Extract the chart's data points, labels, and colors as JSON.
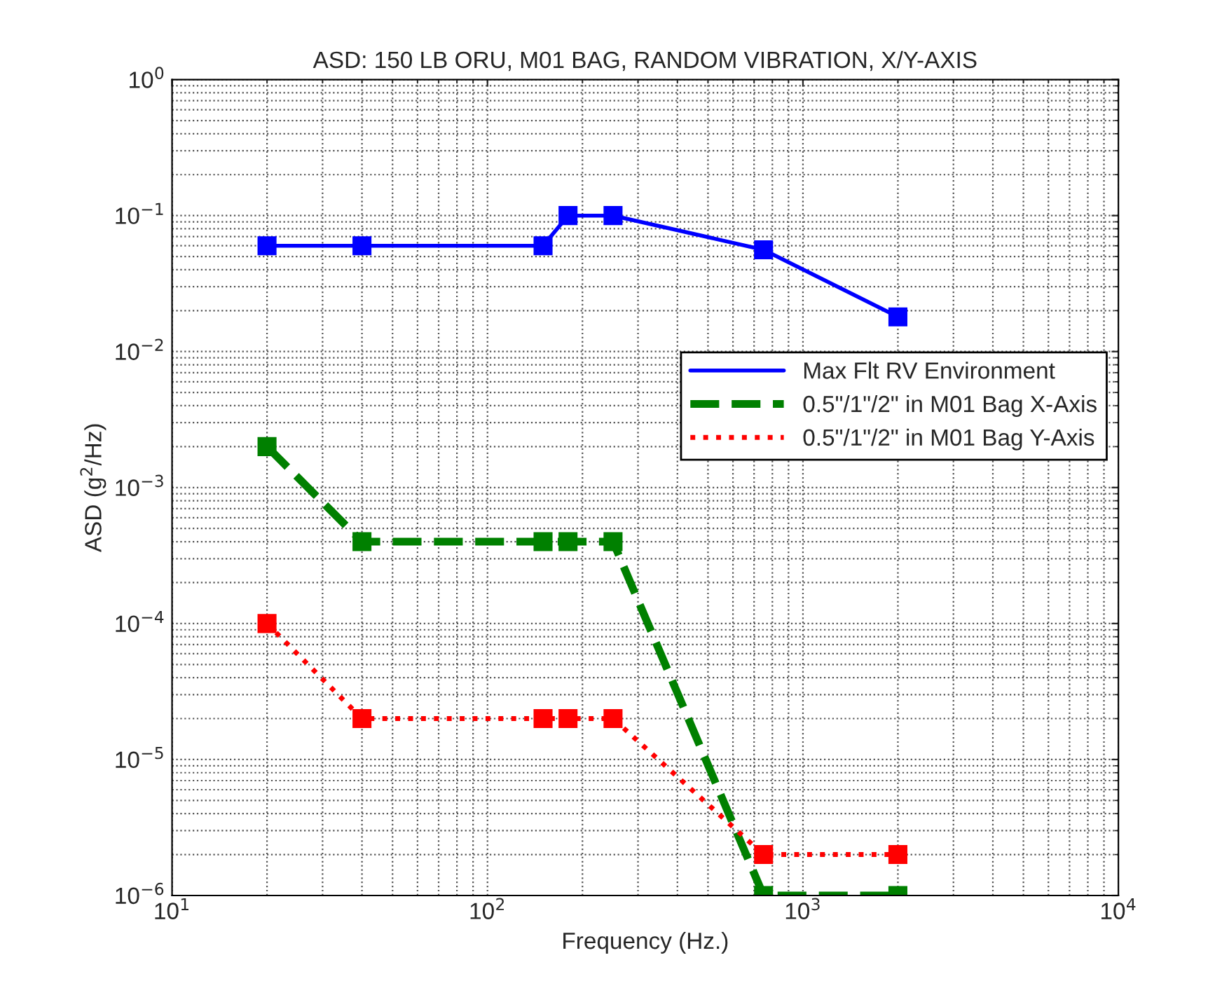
{
  "chart_data": {
    "type": "line",
    "title": "ASD: 150 LB ORU, M01 BAG, RANDOM VIBRATION, X/Y-AXIS",
    "xlabel": "Frequency (Hz.)",
    "ylabel": "ASD (g$^{2}$/Hz)",
    "log": "xy",
    "grid": true,
    "legend": "right",
    "marker": "square",
    "x": [
      20,
      40,
      150,
      180,
      250,
      750,
      2000
    ],
    "xlim": [
      10,
      10000
    ],
    "ylim": [
      1e-06,
      1
    ],
    "xticks": [
      {
        "value": 10,
        "label": "10$^{1}$"
      },
      {
        "value": 100,
        "label": "10$^{2}$"
      },
      {
        "value": 1000,
        "label": "10$^{3}$"
      },
      {
        "value": 10000,
        "label": "10$^{4}$"
      }
    ],
    "yticks": [
      {
        "value": 1e-06,
        "label": "10$^{−6}$"
      },
      {
        "value": 1e-05,
        "label": "10$^{−5}$"
      },
      {
        "value": 0.0001,
        "label": "10$^{−4}$"
      },
      {
        "value": 0.001,
        "label": "10$^{−3}$"
      },
      {
        "value": 0.01,
        "label": "10$^{−2}$"
      },
      {
        "value": 0.1,
        "label": "10$^{−1}$"
      },
      {
        "value": 1,
        "label": "10$^{0}$"
      }
    ],
    "series": [
      {
        "name": "Max Flt RV Environment",
        "color": "#0000ff",
        "line_style": "solid",
        "values": [
          0.06,
          0.06,
          0.06,
          0.1,
          0.1,
          0.056,
          0.018
        ]
      },
      {
        "name": "0.5\"/1\"/2\" in M01 Bag X-Axis",
        "color": "#008000",
        "line_style": "dashed",
        "values": [
          0.002,
          0.0004,
          0.0004,
          0.0004,
          0.0004,
          1e-06,
          1e-06
        ]
      },
      {
        "name": "0.5\"/1\"/2\" in M01 Bag Y-Axis",
        "color": "#ff0000",
        "line_style": "dotted",
        "values": [
          0.0001,
          2e-05,
          2e-05,
          2e-05,
          2e-05,
          2e-06,
          2e-06
        ]
      }
    ]
  }
}
